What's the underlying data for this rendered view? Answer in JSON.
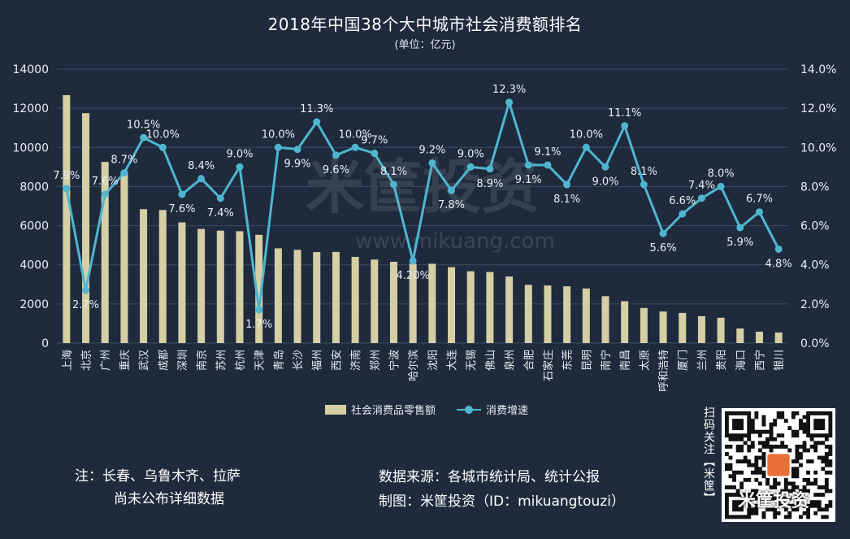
{
  "title": "2018年中国38个大中城市社会消费额排名",
  "subtitle": "(单位：亿元)",
  "legend": {
    "bar": "社会消费品零售额",
    "line": "消费增速"
  },
  "note": {
    "line1": "注：长春、乌鲁木齐、拉萨",
    "line2": "尚未公布详细数据"
  },
  "source": {
    "line1": "数据来源：各城市统计局、统计公报",
    "line2": "制图：米筐投资（ID：mikuangtouzi）"
  },
  "watermark": "米筐投资",
  "watermark_url": "www.mikuang.com",
  "qr": {
    "side_text": "扫码关注【米筐】",
    "brand_text": "米筐投资"
  },
  "colors": {
    "background": "#1f2b3d",
    "bar": "#d6cfa6",
    "line": "#4fb6cf",
    "grid": "#3b4a60"
  },
  "chart_data": {
    "type": "bar",
    "categories": [
      "上海",
      "北京",
      "广州",
      "重庆",
      "武汉",
      "成都",
      "深圳",
      "南京",
      "苏州",
      "杭州",
      "天津",
      "青岛",
      "长沙",
      "福州",
      "西安",
      "济南",
      "郑州",
      "宁波",
      "哈尔滨",
      "沈阳",
      "大连",
      "无锡",
      "佛山",
      "泉州",
      "合肥",
      "石家庄",
      "东莞",
      "昆明",
      "南宁",
      "南昌",
      "太原",
      "呼和浩特",
      "厦门",
      "兰州",
      "贵阳",
      "海口",
      "西宁",
      "银川"
    ],
    "series": [
      {
        "name": "社会消费品零售额",
        "type": "bar",
        "axis": "left",
        "values": [
          12668,
          11748,
          9256,
          8770,
          6843,
          6801,
          6168,
          5832,
          5747,
          5715,
          5533,
          4842,
          4765,
          4648,
          4659,
          4405,
          4268,
          4155,
          4055,
          4052,
          3880,
          3670,
          3632,
          3400,
          2977,
          2942,
          2902,
          2790,
          2396,
          2140,
          1795,
          1612,
          1542,
          1374,
          1295,
          746,
          581,
          542
        ]
      },
      {
        "name": "消费增速",
        "type": "line",
        "axis": "right",
        "values": [
          7.9,
          2.7,
          7.6,
          8.7,
          10.5,
          10.0,
          7.6,
          8.4,
          7.4,
          9.0,
          1.7,
          10.0,
          9.9,
          11.3,
          9.6,
          10.0,
          9.7,
          8.1,
          4.2,
          9.2,
          7.8,
          9.0,
          8.9,
          12.3,
          9.1,
          9.1,
          8.1,
          10.0,
          9.0,
          11.1,
          8.1,
          5.6,
          6.6,
          7.4,
          8.0,
          5.9,
          6.7,
          4.8
        ],
        "labels": [
          "7.9%",
          "2.7%",
          "7.6%",
          "8.7%",
          "10.5%",
          "10.0%",
          "7.6%",
          "8.4%",
          "7.4%",
          "9.0%",
          "1.7%",
          "10.0%",
          "9.9%",
          "11.3%",
          "9.6%",
          "10.0%",
          "9.7%",
          "8.1%",
          "4.20%",
          "9.2%",
          "7.8%",
          "9.0%",
          "8.9%",
          "12.3%",
          "9.1%",
          "9.1%",
          "8.1%",
          "10.0%",
          "9.0%",
          "11.1%",
          "8.1%",
          "5.6%",
          "6.6%",
          "7.4%",
          "8.0%",
          "5.9%",
          "6.7%",
          "4.8%"
        ]
      }
    ],
    "y_left": {
      "min": 0,
      "max": 14000,
      "ticks": [
        "0",
        "2000",
        "4000",
        "6000",
        "8000",
        "10000",
        "12000",
        "14000"
      ]
    },
    "y_right": {
      "min": 0,
      "max": 14,
      "ticks": [
        "0.0%",
        "2.0%",
        "4.0%",
        "6.0%",
        "8.0%",
        "10.0%",
        "12.0%",
        "14.0%"
      ]
    },
    "grid": true,
    "legend_position": "bottom"
  }
}
